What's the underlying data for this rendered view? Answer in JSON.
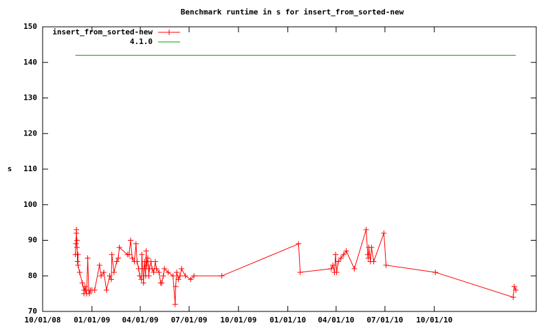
{
  "chart_data": {
    "type": "line",
    "title": "Benchmark runtime in s for insert_from_sorted-new",
    "y_label": "s",
    "x": [
      "2008-12-01",
      "2008-12-02",
      "2008-12-03",
      "2008-12-03",
      "2008-12-04",
      "2008-12-04",
      "2008-12-05",
      "2008-12-06",
      "2008-12-06",
      "2008-12-09",
      "2008-12-14",
      "2008-12-17",
      "2008-12-17",
      "2008-12-19",
      "2008-12-20",
      "2008-12-22",
      "2008-12-24",
      "2008-12-26",
      "2008-12-27",
      "2008-12-29",
      "2009-01-01",
      "2009-01-06",
      "2009-01-15",
      "2009-01-18",
      "2009-01-23",
      "2009-01-28",
      "2009-02-03",
      "2009-02-06",
      "2009-02-07",
      "2009-02-11",
      "2009-02-16",
      "2009-02-19",
      "2009-02-21",
      "2009-03-08",
      "2009-03-11",
      "2009-03-14",
      "2009-03-17",
      "2009-03-21",
      "2009-03-24",
      "2009-03-26",
      "2009-03-29",
      "2009-03-31",
      "2009-04-03",
      "2009-04-04",
      "2009-04-07",
      "2009-04-08",
      "2009-04-09",
      "2009-04-11",
      "2009-04-12",
      "2009-04-13",
      "2009-04-15",
      "2009-04-17",
      "2009-04-18",
      "2009-04-21",
      "2009-04-23",
      "2009-04-26",
      "2009-04-29",
      "2009-05-01",
      "2009-05-06",
      "2009-05-09",
      "2009-05-11",
      "2009-05-14",
      "2009-05-16",
      "2009-05-23",
      "2009-06-01",
      "2009-06-05",
      "2009-06-06",
      "2009-06-08",
      "2009-06-11",
      "2009-06-14",
      "2009-06-17",
      "2009-06-24",
      "2009-07-04",
      "2009-07-10",
      "2009-08-31",
      "2010-01-21",
      "2010-01-24",
      "2010-03-23",
      "2010-03-26",
      "2010-03-29",
      "2010-03-31",
      "2010-04-02",
      "2010-04-05",
      "2010-04-10",
      "2010-04-15",
      "2010-04-20",
      "2010-05-05",
      "2010-05-27",
      "2010-05-30",
      "2010-05-31",
      "2010-06-01",
      "2010-06-04",
      "2010-06-06",
      "2010-06-10",
      "2010-06-29",
      "2010-07-03",
      "2010-10-03",
      "2011-02-25",
      "2011-02-27",
      "2011-03-02"
    ],
    "series": [
      {
        "name": "insert_from_sorted-new",
        "color": "#ff0000",
        "marker": "+",
        "values": [
          86,
          89,
          93,
          92,
          88,
          90,
          84,
          86,
          83,
          81,
          78,
          76,
          75,
          77,
          76,
          75,
          85,
          76,
          75,
          76,
          76,
          76,
          83,
          80,
          81,
          76,
          80,
          79,
          86,
          81,
          84,
          85,
          88,
          86,
          86,
          90,
          85,
          84,
          89,
          84,
          82,
          80,
          79,
          86,
          78,
          82,
          84,
          80,
          87,
          83,
          85,
          80,
          82,
          84,
          82,
          81,
          84,
          82,
          81,
          78,
          78,
          80,
          82,
          81,
          80,
          72,
          77,
          81,
          79,
          80,
          82,
          80,
          79,
          80,
          80,
          89,
          81,
          82,
          83,
          81,
          86,
          81,
          84,
          85,
          86,
          87,
          82,
          93,
          86,
          85,
          88,
          84,
          88,
          84,
          92,
          83,
          81,
          74,
          77,
          76
        ]
      },
      {
        "name": "4.1.0",
        "color": "#00a000",
        "x": [
          "2008-12-01",
          "2011-03-02"
        ],
        "values": [
          142,
          142
        ]
      }
    ],
    "xlim": [
      "2008-10-01",
      "2011-04-09"
    ],
    "xticks": [
      {
        "value": "2008-10-01",
        "label": "10/01/08"
      },
      {
        "value": "2009-01-01",
        "label": "01/01/09"
      },
      {
        "value": "2009-04-01",
        "label": "04/01/09"
      },
      {
        "value": "2009-07-01",
        "label": "07/01/09"
      },
      {
        "value": "2009-10-01",
        "label": "10/01/09"
      },
      {
        "value": "2010-01-01",
        "label": "01/01/10"
      },
      {
        "value": "2010-04-01",
        "label": "04/01/10"
      },
      {
        "value": "2010-07-01",
        "label": "07/01/10"
      },
      {
        "value": "2010-10-01",
        "label": "10/01/10"
      }
    ],
    "ylim": [
      70,
      150
    ],
    "yticks": [
      70,
      80,
      90,
      100,
      110,
      120,
      130,
      140,
      150
    ],
    "legend": "top left"
  }
}
